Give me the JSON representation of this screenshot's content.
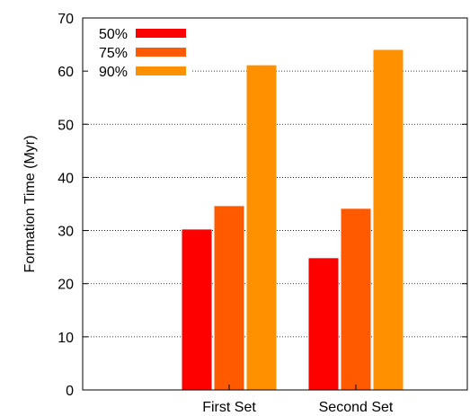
{
  "chart_data": {
    "type": "bar",
    "title": "",
    "xlabel": "",
    "ylabel": "Formation Time (Myr)",
    "categories": [
      "First Set",
      "Second Set"
    ],
    "series": [
      {
        "name": "50%",
        "values": [
          30.2,
          24.8
        ],
        "color": "#ff0000"
      },
      {
        "name": "75%",
        "values": [
          34.6,
          34.1
        ],
        "color": "#ff5a00"
      },
      {
        "name": "90%",
        "values": [
          61.1,
          64.0
        ],
        "color": "#ff9000"
      }
    ],
    "ylim": [
      0,
      70
    ],
    "yticks": [
      0,
      10,
      20,
      30,
      40,
      50,
      60,
      70
    ],
    "grid": "horizontal dotted",
    "legend_position": "top-left"
  }
}
